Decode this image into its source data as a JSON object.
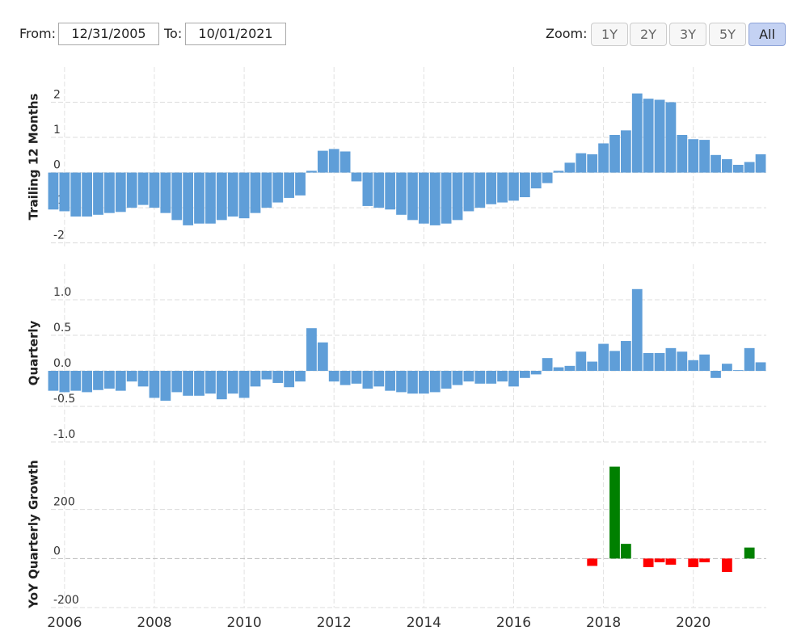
{
  "controls": {
    "from_label": "From:",
    "from_value": "12/31/2005",
    "to_label": "To:",
    "to_value": "10/01/2021",
    "zoom_label": "Zoom:",
    "zoom_buttons": [
      "1Y",
      "2Y",
      "3Y",
      "5Y",
      "All"
    ],
    "active_zoom": 4
  },
  "chart_data": [
    {
      "type": "bar",
      "y_label": "Trailing 12 Months",
      "color": "#5f9ed8",
      "x": [
        2005.75,
        2006,
        2006.25,
        2006.5,
        2006.75,
        2007,
        2007.25,
        2007.5,
        2007.75,
        2008,
        2008.25,
        2008.5,
        2008.75,
        2009,
        2009.25,
        2009.5,
        2009.75,
        2010,
        2010.25,
        2010.5,
        2010.75,
        2011,
        2011.25,
        2011.5,
        2011.75,
        2012,
        2012.25,
        2012.5,
        2012.75,
        2013,
        2013.25,
        2013.5,
        2013.75,
        2014,
        2014.25,
        2014.5,
        2014.75,
        2015,
        2015.25,
        2015.5,
        2015.75,
        2016,
        2016.25,
        2016.5,
        2016.75,
        2017,
        2017.25,
        2017.5,
        2017.75,
        2018,
        2018.25,
        2018.5,
        2018.75,
        2019,
        2019.25,
        2019.5,
        2019.75,
        2020,
        2020.25,
        2020.5,
        2020.75,
        2021,
        2021.25,
        2021.5
      ],
      "values": [
        -1.05,
        -1.1,
        -1.25,
        -1.25,
        -1.2,
        -1.15,
        -1.12,
        -1.0,
        -0.92,
        -1.0,
        -1.15,
        -1.35,
        -1.5,
        -1.45,
        -1.45,
        -1.35,
        -1.25,
        -1.3,
        -1.15,
        -1.0,
        -0.85,
        -0.72,
        -0.65,
        0.05,
        0.62,
        0.67,
        0.6,
        -0.25,
        -0.95,
        -1.0,
        -1.05,
        -1.2,
        -1.35,
        -1.45,
        -1.5,
        -1.45,
        -1.35,
        -1.1,
        -1.0,
        -0.9,
        -0.85,
        -0.8,
        -0.7,
        -0.45,
        -0.3,
        0.05,
        0.28,
        0.55,
        0.52,
        0.83,
        1.07,
        1.2,
        2.25,
        2.1,
        2.07,
        2.0,
        1.07,
        0.95,
        0.93,
        0.5,
        0.38,
        0.22,
        0.3,
        0.52
      ],
      "xlim": [
        2005.625,
        2021.625
      ],
      "ylim": [
        -2.1,
        3
      ],
      "yticks": [
        -2,
        -1,
        0,
        1,
        2
      ],
      "grid": true
    },
    {
      "type": "bar",
      "y_label": "Quarterly",
      "color": "#5f9ed8",
      "x": [
        2005.75,
        2006,
        2006.25,
        2006.5,
        2006.75,
        2007,
        2007.25,
        2007.5,
        2007.75,
        2008,
        2008.25,
        2008.5,
        2008.75,
        2009,
        2009.25,
        2009.5,
        2009.75,
        2010,
        2010.25,
        2010.5,
        2010.75,
        2011,
        2011.25,
        2011.5,
        2011.75,
        2012,
        2012.25,
        2012.5,
        2012.75,
        2013,
        2013.25,
        2013.5,
        2013.75,
        2014,
        2014.25,
        2014.5,
        2014.75,
        2015,
        2015.25,
        2015.5,
        2015.75,
        2016,
        2016.25,
        2016.5,
        2016.75,
        2017,
        2017.25,
        2017.5,
        2017.75,
        2018,
        2018.25,
        2018.5,
        2018.75,
        2019,
        2019.25,
        2019.5,
        2019.75,
        2020,
        2020.25,
        2020.5,
        2020.75,
        2021,
        2021.25,
        2021.5
      ],
      "values": [
        -0.28,
        -0.3,
        -0.28,
        -0.3,
        -0.27,
        -0.25,
        -0.28,
        -0.15,
        -0.22,
        -0.38,
        -0.42,
        -0.3,
        -0.35,
        -0.35,
        -0.32,
        -0.4,
        -0.32,
        -0.38,
        -0.22,
        -0.12,
        -0.17,
        -0.23,
        -0.15,
        0.6,
        0.4,
        -0.15,
        -0.2,
        -0.18,
        -0.25,
        -0.22,
        -0.28,
        -0.3,
        -0.32,
        -0.32,
        -0.3,
        -0.25,
        -0.2,
        -0.15,
        -0.18,
        -0.18,
        -0.15,
        -0.22,
        -0.1,
        -0.05,
        0.18,
        0.05,
        0.07,
        0.27,
        0.13,
        0.38,
        0.28,
        0.42,
        1.15,
        0.25,
        0.25,
        0.32,
        0.27,
        0.15,
        0.23,
        -0.1,
        0.1,
        0.01,
        0.32,
        0.12
      ],
      "xlim": [
        2005.625,
        2021.625
      ],
      "ylim": [
        -1.0,
        1.5
      ],
      "yticks": [
        {
          "value": -1.0,
          "label": "-1.0"
        },
        -0.5,
        {
          "value": 0,
          "label": "0.0"
        },
        0.5,
        {
          "value": 1.0,
          "label": "1.0"
        }
      ],
      "grid": true
    },
    {
      "type": "bar",
      "y_label": "YoY Quarterly Growth",
      "positive_color": "#008000",
      "negative_color": "#ff0000",
      "x": [
        2005.75,
        2006,
        2006.25,
        2006.5,
        2006.75,
        2007,
        2007.25,
        2007.5,
        2007.75,
        2008,
        2008.25,
        2008.5,
        2008.75,
        2009,
        2009.25,
        2009.5,
        2009.75,
        2010,
        2010.25,
        2010.5,
        2010.75,
        2011,
        2011.25,
        2011.5,
        2011.75,
        2012,
        2012.25,
        2012.5,
        2012.75,
        2013,
        2013.25,
        2013.5,
        2013.75,
        2014,
        2014.25,
        2014.5,
        2014.75,
        2015,
        2015.25,
        2015.5,
        2015.75,
        2016,
        2016.25,
        2016.5,
        2016.75,
        2017,
        2017.25,
        2017.5,
        2017.75,
        2018,
        2018.25,
        2018.5,
        2018.75,
        2019,
        2019.25,
        2019.5,
        2019.75,
        2020,
        2020.25,
        2020.5,
        2020.75,
        2021,
        2021.25,
        2021.5
      ],
      "values": [
        null,
        null,
        null,
        null,
        null,
        null,
        null,
        null,
        null,
        null,
        null,
        null,
        null,
        null,
        null,
        null,
        null,
        null,
        null,
        null,
        null,
        null,
        null,
        null,
        null,
        null,
        null,
        null,
        null,
        null,
        null,
        null,
        null,
        null,
        null,
        null,
        null,
        null,
        null,
        null,
        null,
        null,
        null,
        null,
        null,
        null,
        null,
        null,
        -30,
        null,
        375,
        60,
        null,
        -35,
        -15,
        -25,
        null,
        -35,
        -15,
        null,
        -55,
        null,
        45,
        null
      ],
      "xlim": [
        2005.625,
        2021.625
      ],
      "ylim": [
        -200,
        400
      ],
      "yticks": [
        -200,
        0,
        200
      ],
      "xticks": [
        2006,
        2008,
        2010,
        2012,
        2014,
        2016,
        2018,
        2020
      ],
      "grid": true
    }
  ]
}
